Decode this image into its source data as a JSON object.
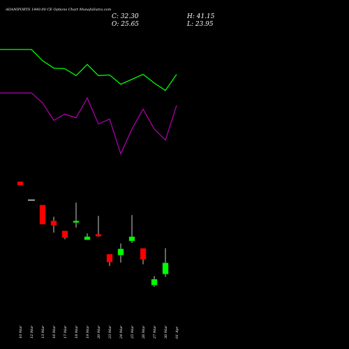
{
  "header": {
    "title": "ADANIPORTS 1440.00  CE Options  Chart MunafaSutra.com",
    "close": "C: 32.30",
    "open": "O: 25.65",
    "high": "H: 41.15",
    "low": "L: 23.95"
  },
  "chart_data": {
    "type": "candlestick",
    "title": "ADANIPORTS 1440.00  CE Options  Chart MunafaSutra.com",
    "categories": [
      "10 Mar",
      "12 Mar",
      "13 Mar",
      "16 Mar",
      "17 Mar",
      "18 Mar",
      "19 Mar",
      "20 Mar",
      "23 Mar",
      "24 Mar",
      "25 Mar",
      "26 Mar",
      "27 Mar",
      "30 Mar",
      "01 Apr"
    ],
    "ohlc": [
      {
        "date": "10 Mar",
        "open": 81.0,
        "high": 81.0,
        "low": 79.0,
        "close": 79.0
      },
      {
        "date": "12 Mar",
        "open": 70.0,
        "high": 70.0,
        "low": 70.0,
        "close": 70.0
      },
      {
        "date": "13 Mar",
        "open": 67.0,
        "high": 67.0,
        "low": 55.5,
        "close": 55.5
      },
      {
        "date": "16 Mar",
        "open": 57.5,
        "high": 60.0,
        "low": 50.5,
        "close": 54.8
      },
      {
        "date": "17 Mar",
        "open": 51.5,
        "high": 51.5,
        "low": 46.5,
        "close": 47.5
      },
      {
        "date": "18 Mar",
        "open": 56.5,
        "high": 68.5,
        "low": 53.5,
        "close": 57.5
      },
      {
        "date": "19 Mar",
        "open": 46.2,
        "high": 50.0,
        "low": 46.2,
        "close": 48.0
      },
      {
        "date": "20 Mar",
        "open": 49.5,
        "high": 60.5,
        "low": 48.0,
        "close": 48.3
      },
      {
        "date": "23 Mar",
        "open": 37.5,
        "high": 37.5,
        "low": 30.5,
        "close": 32.8
      },
      {
        "date": "24 Mar",
        "open": 37.0,
        "high": 44.0,
        "low": 32.5,
        "close": 40.7
      },
      {
        "date": "25 Mar",
        "open": 45.5,
        "high": 61.0,
        "low": 44.3,
        "close": 48.0
      },
      {
        "date": "26 Mar",
        "open": 41.0,
        "high": 41.0,
        "low": 31.5,
        "close": 34.5
      },
      {
        "date": "27 Mar",
        "open": 19.0,
        "high": 24.5,
        "low": 18.0,
        "close": 22.5
      },
      {
        "date": "30 Mar",
        "open": 25.65,
        "high": 41.15,
        "low": 23.95,
        "close": 32.3
      }
    ],
    "dates": [
      "10 Mar",
      "12 Mar",
      "13 Mar",
      "16 Mar",
      "17 Mar",
      "18 Mar",
      "19 Mar",
      "20 Mar",
      "23 Mar",
      "24 Mar",
      "25 Mar",
      "26 Mar",
      "27 Mar",
      "30 Mar",
      "01 Apr"
    ],
    "price_range": [
      0,
      100
    ],
    "indicators": [
      {
        "color": "#00ff00",
        "values": [
          95,
          95,
          86,
          80,
          79.5,
          74,
          83,
          74,
          74.5,
          67,
          71,
          75,
          68,
          62,
          75
        ]
      },
      {
        "color": "#aa00aa",
        "values": [
          60,
          60,
          52,
          38,
          43,
          40,
          56,
          35,
          39,
          11,
          31,
          47,
          31,
          22,
          50
        ]
      }
    ],
    "colors": {
      "up": "#00ff00",
      "down": "#ff0000",
      "wick": "#ffffff",
      "background": "#000000",
      "text": "#ffffff"
    }
  }
}
